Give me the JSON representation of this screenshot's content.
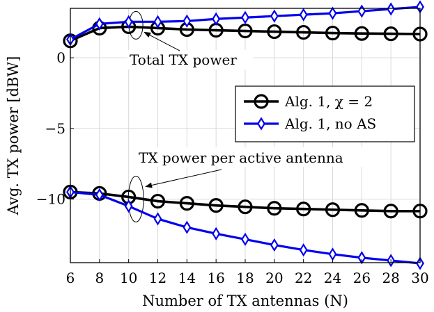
{
  "chart_data": {
    "type": "line",
    "xlabel": "Number of TX antennas (N)",
    "ylabel": "Avg. TX power [dBW]",
    "x": [
      6,
      8,
      10,
      12,
      14,
      16,
      18,
      20,
      22,
      24,
      26,
      28,
      30
    ],
    "xlim": [
      6,
      30
    ],
    "ylim": [
      -14.5,
      3.5
    ],
    "xticks": [
      "6",
      "8",
      "10",
      "12",
      "14",
      "16",
      "18",
      "20",
      "22",
      "24",
      "26",
      "28",
      "30"
    ],
    "yticks": [
      "0",
      "−5",
      "−10"
    ],
    "ytick_values": [
      0,
      -5,
      -10
    ],
    "grid": true,
    "legend_position": "right",
    "series": [
      {
        "name": "Alg. 1, χ = 2",
        "color": "#000000",
        "marker": "circle",
        "groups": [
          {
            "label": "Total TX power",
            "values": [
              1.2,
              2.1,
              2.2,
              2.1,
              2.0,
              1.95,
              1.9,
              1.85,
              1.8,
              1.75,
              1.72,
              1.7,
              1.68
            ]
          },
          {
            "label": "TX power per active antenna",
            "values": [
              -9.5,
              -9.6,
              -9.85,
              -10.15,
              -10.3,
              -10.45,
              -10.55,
              -10.65,
              -10.7,
              -10.75,
              -10.8,
              -10.85,
              -10.85
            ]
          }
        ]
      },
      {
        "name": "Alg. 1, no AS",
        "color": "#0000ee",
        "marker": "diamond",
        "groups": [
          {
            "label": "Total TX power",
            "values": [
              1.3,
              2.4,
              2.55,
              2.55,
              2.6,
              2.75,
              2.85,
              2.95,
              3.05,
              3.15,
              3.3,
              3.45,
              3.6
            ]
          },
          {
            "label": "TX power per active antenna",
            "values": [
              -9.5,
              -9.7,
              -10.5,
              -11.4,
              -12.0,
              -12.45,
              -12.85,
              -13.25,
              -13.6,
              -13.9,
              -14.15,
              -14.35,
              -14.55
            ]
          }
        ]
      }
    ],
    "annotations": [
      {
        "text": "Total TX power",
        "target_x": 10.5,
        "target_y": 2.3
      },
      {
        "text": "TX power per active antenna",
        "target_x": 10.5,
        "target_y": -10.0
      }
    ]
  }
}
